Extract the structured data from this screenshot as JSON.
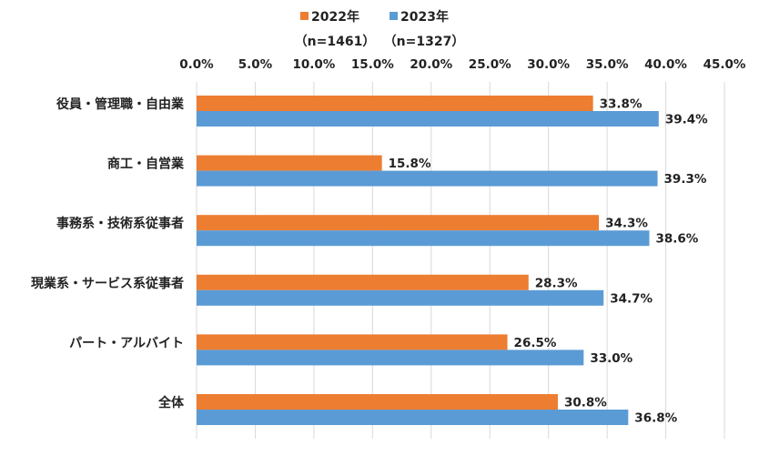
{
  "chart_data": {
    "type": "bar",
    "orientation": "horizontal",
    "categories": [
      "役員・管理職・自由業",
      "商工・自営業",
      "事務系・技術系従事者",
      "現業系・サービス系従事者",
      "パート・アルバイト",
      "全体"
    ],
    "series": [
      {
        "name": "2022年",
        "sample": "（n=1461）",
        "color": "#ED7D31",
        "values": [
          33.8,
          15.8,
          34.3,
          28.3,
          26.5,
          30.8
        ],
        "labels": [
          "33.8%",
          "15.8%",
          "34.3%",
          "28.3%",
          "26.5%",
          "30.8%"
        ]
      },
      {
        "name": "2023年",
        "sample": "（n=1327）",
        "color": "#5B9BD5",
        "values": [
          39.4,
          39.3,
          38.6,
          34.7,
          33.0,
          36.8
        ],
        "labels": [
          "39.4%",
          "39.3%",
          "38.6%",
          "34.7%",
          "33.0%",
          "36.8%"
        ]
      }
    ],
    "xlim": [
      0,
      45
    ],
    "ticks": [
      0,
      5,
      10,
      15,
      20,
      25,
      30,
      35,
      40,
      45
    ],
    "tick_labels": [
      "0.0%",
      "5.0%",
      "10.0%",
      "15.0%",
      "20.0%",
      "25.0%",
      "30.0%",
      "35.0%",
      "40.0%",
      "45.0%"
    ],
    "grid": true,
    "axis_position": "top",
    "legend_position": "top-center"
  }
}
